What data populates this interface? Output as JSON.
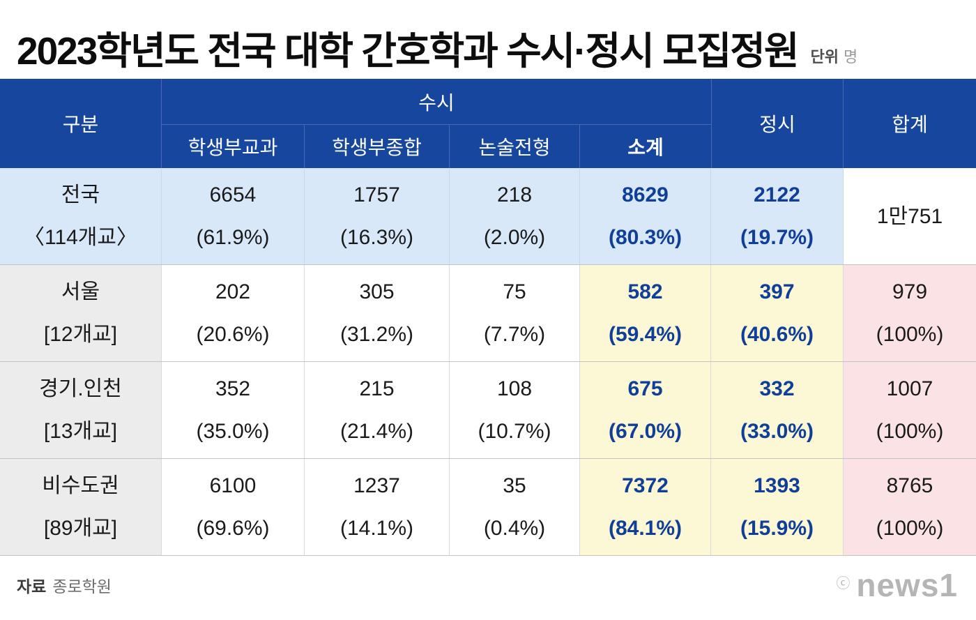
{
  "page": {
    "title": "2023학년도 전국 대학 간호학과 수시·정시 모집정원",
    "unit_label": "단위",
    "unit_value": "명",
    "source_label": "자료",
    "source_value": "종로학원",
    "logo_copyright": "ⓒ",
    "logo_text": "news1"
  },
  "table": {
    "headers": {
      "category": "구분",
      "susi": "수시",
      "susi_sub": [
        "학생부교과",
        "학생부종합",
        "논술전형",
        "소계"
      ],
      "jeongsi": "정시",
      "total": "합계"
    },
    "rows": [
      {
        "name": "전국",
        "schools": "〈114개교〉",
        "cells": [
          {
            "v": "6654",
            "p": "(61.9%)"
          },
          {
            "v": "1757",
            "p": "(16.3%)"
          },
          {
            "v": "218",
            "p": "(2.0%)"
          },
          {
            "v": "8629",
            "p": "(80.3%)"
          },
          {
            "v": "2122",
            "p": "(19.7%)"
          },
          {
            "v": "1만751"
          }
        ]
      },
      {
        "name": "서울",
        "schools": "[12개교]",
        "cells": [
          {
            "v": "202",
            "p": "(20.6%)"
          },
          {
            "v": "305",
            "p": "(31.2%)"
          },
          {
            "v": "75",
            "p": "(7.7%)"
          },
          {
            "v": "582",
            "p": "(59.4%)"
          },
          {
            "v": "397",
            "p": "(40.6%)"
          },
          {
            "v": "979",
            "p": "(100%)"
          }
        ]
      },
      {
        "name": "경기.인천",
        "schools": "[13개교]",
        "cells": [
          {
            "v": "352",
            "p": "(35.0%)"
          },
          {
            "v": "215",
            "p": "(21.4%)"
          },
          {
            "v": "108",
            "p": "(10.7%)"
          },
          {
            "v": "675",
            "p": "(67.0%)"
          },
          {
            "v": "332",
            "p": "(33.0%)"
          },
          {
            "v": "1007",
            "p": "(100%)"
          }
        ]
      },
      {
        "name": "비수도권",
        "schools": "[89개교]",
        "cells": [
          {
            "v": "6100",
            "p": "(69.6%)"
          },
          {
            "v": "1237",
            "p": "(14.1%)"
          },
          {
            "v": "35",
            "p": "(0.4%)"
          },
          {
            "v": "7372",
            "p": "(84.1%)"
          },
          {
            "v": "1393",
            "p": "(15.9%)"
          },
          {
            "v": "8765",
            "p": "(100%)"
          }
        ]
      }
    ]
  },
  "chart_data": {
    "type": "table",
    "title": "2023학년도 전국 대학 간호학과 수시·정시 모집정원",
    "unit": "명",
    "columns": [
      "구분",
      "수시 학생부교과",
      "수시 학생부종합",
      "수시 논술전형",
      "수시 소계",
      "정시",
      "합계"
    ],
    "rows": [
      {
        "region": "전국",
        "school_count": 114,
        "학생부교과": 6654,
        "학생부교과_pct": 61.9,
        "학생부종합": 1757,
        "학생부종합_pct": 16.3,
        "논술전형": 218,
        "논술전형_pct": 2.0,
        "수시소계": 8629,
        "수시소계_pct": 80.3,
        "정시": 2122,
        "정시_pct": 19.7,
        "합계": 10751
      },
      {
        "region": "서울",
        "school_count": 12,
        "학생부교과": 202,
        "학생부교과_pct": 20.6,
        "학생부종합": 305,
        "학생부종합_pct": 31.2,
        "논술전형": 75,
        "논술전형_pct": 7.7,
        "수시소계": 582,
        "수시소계_pct": 59.4,
        "정시": 397,
        "정시_pct": 40.6,
        "합계": 979,
        "합계_pct": 100
      },
      {
        "region": "경기.인천",
        "school_count": 13,
        "학생부교과": 352,
        "학생부교과_pct": 35.0,
        "학생부종합": 215,
        "학생부종합_pct": 21.4,
        "논술전형": 108,
        "논술전형_pct": 10.7,
        "수시소계": 675,
        "수시소계_pct": 67.0,
        "정시": 332,
        "정시_pct": 33.0,
        "합계": 1007,
        "합계_pct": 100
      },
      {
        "region": "비수도권",
        "school_count": 89,
        "학생부교과": 6100,
        "학생부교과_pct": 69.6,
        "학생부종합": 1237,
        "학생부종합_pct": 14.1,
        "논술전형": 35,
        "논술전형_pct": 0.4,
        "수시소계": 7372,
        "수시소계_pct": 84.1,
        "정시": 1393,
        "정시_pct": 15.9,
        "합계": 8765,
        "합계_pct": 100
      }
    ]
  },
  "colors": {
    "header_bg": "#17469e",
    "header_divider": "#4a69b5",
    "nation_row_bg": "#d9e8f9",
    "category_cell_bg": "#ececec",
    "subtotal_bg": "#fcf7d4",
    "total_bg": "#fbe2e4",
    "emphasis_text": "#103f97",
    "row_divider": "#c3c3c3",
    "column_divider": "#dadada",
    "logo_gray": "#b5b5b5"
  }
}
